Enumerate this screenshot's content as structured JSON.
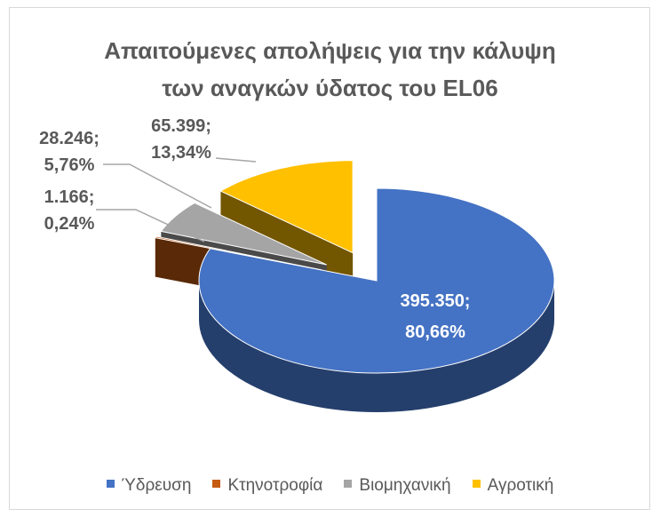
{
  "chart_data": {
    "type": "pie",
    "title": "Απαιτούμενες απολήψεις για την κάλυψη των αναγκών ύδατος του EL06",
    "title_lines": [
      "Απαιτούμενες απολήψεις για την κάλυψη",
      "των αναγκών ύδατος του EL06"
    ],
    "legend_position": "bottom",
    "slices": [
      {
        "name": "Ύδρευση",
        "value": 395350,
        "value_label": "395.350;",
        "percent_label": "80,66%",
        "color": "#4472C4"
      },
      {
        "name": "Κτηνοτροφία",
        "value": 1166,
        "value_label": "1.166;",
        "percent_label": "0,24%",
        "color": "#C55A11"
      },
      {
        "name": "Βιομηχανική",
        "value": 28246,
        "value_label": "28.246;",
        "percent_label": "5,76%",
        "color": "#A5A5A5"
      },
      {
        "name": "Αγροτική",
        "value": 65399,
        "value_label": "65.399;",
        "percent_label": "13,34%",
        "color": "#FFC000"
      }
    ]
  }
}
